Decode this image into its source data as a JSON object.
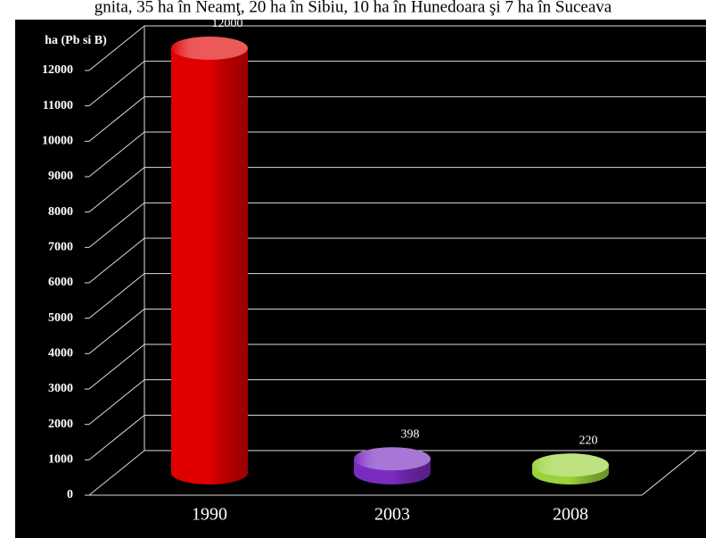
{
  "chart_data": {
    "type": "bar",
    "caption": "gnita, 35 ha în Neamţ, 20 ha în Sibiu, 10 ha în Hunedoara şi 7 ha în Suceava",
    "y_label": "ha (Pb si B)",
    "categories": [
      "1990",
      "2003",
      "2008"
    ],
    "values": [
      12000,
      398,
      220
    ],
    "colors": [
      "#e00000",
      "#7a2cc0",
      "#9ad23a"
    ],
    "ylim": [
      0,
      12000
    ],
    "yticks": [
      0,
      1000,
      2000,
      3000,
      4000,
      5000,
      6000,
      7000,
      8000,
      9000,
      10000,
      11000,
      12000
    ],
    "grid": true
  }
}
